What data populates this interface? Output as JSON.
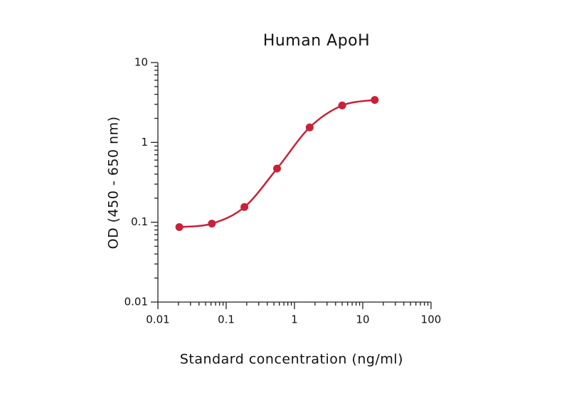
{
  "chart_data": {
    "type": "scatter",
    "title": "Human ApoH",
    "x_label": "Standard concentration (ng/ml)",
    "y_label": "OD (450 - 650 nm)",
    "x_scale": "log",
    "y_scale": "log",
    "xlim": [
      0.01,
      100
    ],
    "ylim": [
      0.01,
      10
    ],
    "xticks": [
      0.01,
      0.1,
      1,
      10,
      100
    ],
    "yticks": [
      0.01,
      0.1,
      1,
      10
    ],
    "series": [
      {
        "color": "#c8213a",
        "x": [
          0.0206,
          0.0617,
          0.185,
          0.556,
          1.67,
          5,
          15
        ],
        "values": [
          0.087,
          0.096,
          0.155,
          0.47,
          1.54,
          2.9,
          3.4
        ]
      }
    ]
  }
}
